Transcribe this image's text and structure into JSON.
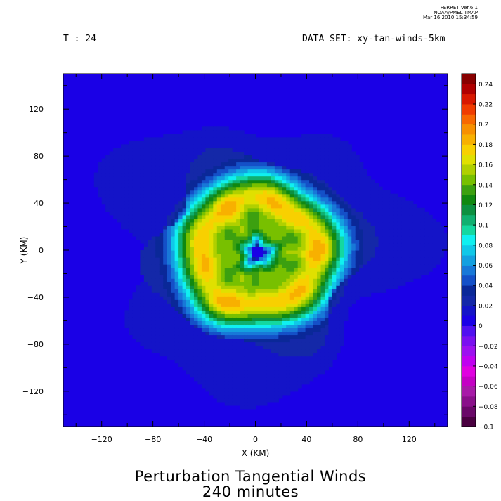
{
  "header": {
    "stamp_line1": "FERRET  Ver.6.1",
    "stamp_line2": "NOAA/PMEL TMAP",
    "stamp_line3": "Mar 16 2010 15:34:59",
    "time_label": "T : 24",
    "dataset_label": "DATA SET: xy-tan-winds-5km"
  },
  "chart_data": {
    "type": "heatmap",
    "title": "Perturbation Tangential Winds",
    "subtitle": "240 minutes",
    "xlabel": "X (KM)",
    "ylabel": "Y (KM)",
    "xlim": [
      -150,
      150
    ],
    "ylim": [
      -150,
      150
    ],
    "x_ticks": [
      -120,
      -80,
      -40,
      0,
      40,
      80,
      120
    ],
    "y_ticks": [
      -120,
      -80,
      -40,
      0,
      40,
      80,
      120
    ],
    "field_description": "perturbation tangential wind; inner ring max ~0.08 at r~18 km, outer ring max ~0.16 at r~45 km, background ~0 to 0.02",
    "center": [
      2,
      -2
    ],
    "rings": [
      {
        "radius_km": 18,
        "peak": 0.085,
        "width_km": 8
      },
      {
        "radius_km": 45,
        "peak": 0.158,
        "width_km": 15
      }
    ],
    "background_level": 0.0,
    "weak_region_level": 0.015,
    "colorbar": {
      "levels": [
        -0.1,
        -0.09,
        -0.08,
        -0.07,
        -0.06,
        -0.05,
        -0.04,
        -0.03,
        -0.02,
        -0.01,
        0,
        0.01,
        0.02,
        0.03,
        0.04,
        0.05,
        0.06,
        0.07,
        0.08,
        0.09,
        0.1,
        0.11,
        0.12,
        0.13,
        0.14,
        0.15,
        0.16,
        0.17,
        0.18,
        0.19,
        0.2,
        0.21,
        0.22,
        0.23,
        0.24,
        0.25
      ],
      "tick_labels": [
        "0.24",
        "0.22",
        "0.2",
        "0.18",
        "0.16",
        "0.14",
        "0.12",
        "0.1",
        "0.08",
        "0.06",
        "0.04",
        "0.02",
        "0",
        "-0.02",
        "-0.04",
        "-0.06",
        "-0.08",
        "-0.1"
      ],
      "tick_values": [
        0.24,
        0.22,
        0.2,
        0.18,
        0.16,
        0.14,
        0.12,
        0.1,
        0.08,
        0.06,
        0.04,
        0.02,
        0,
        -0.02,
        -0.04,
        -0.06,
        -0.08,
        -0.1
      ],
      "colors": [
        "#4a0040",
        "#6a0868",
        "#8a108a",
        "#a81aa8",
        "#c400c4",
        "#e000e0",
        "#c000f0",
        "#9d10f0",
        "#7a10f0",
        "#5010f0",
        "#1a00e6",
        "#1414c8",
        "#1428a8",
        "#0a2898",
        "#1450c8",
        "#1878d8",
        "#14a0e0",
        "#10c8e8",
        "#10f0f0",
        "#14d8a0",
        "#10b070",
        "#0c9040",
        "#108810",
        "#3ca010",
        "#78c000",
        "#b0d000",
        "#e0e000",
        "#f8d000",
        "#f8b000",
        "#f89000",
        "#f86800",
        "#f03c00",
        "#d81800",
        "#b00000",
        "#880000"
      ]
    }
  }
}
